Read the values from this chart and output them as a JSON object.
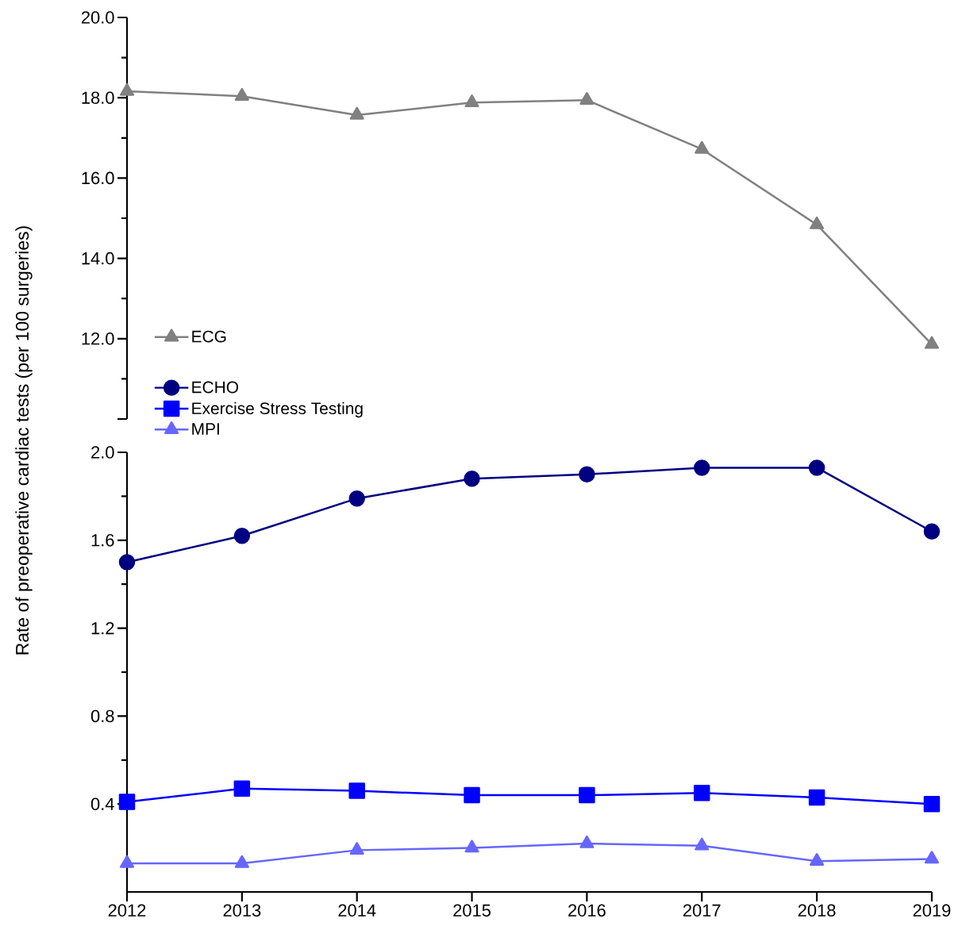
{
  "chart_data": [
    {
      "type": "line",
      "x": [
        2012,
        2013,
        2014,
        2015,
        2016,
        2017,
        2018,
        2019
      ],
      "xlim": [
        2012,
        2019
      ],
      "xticks": [
        2012,
        2013,
        2014,
        2015,
        2016,
        2017,
        2018,
        2019
      ],
      "ylim": [
        10,
        20
      ],
      "yticks": [
        {
          "value": 10,
          "label": null
        },
        {
          "value": 12,
          "label": "12.0"
        },
        {
          "value": 14,
          "label": "14.0"
        },
        {
          "value": 16,
          "label": "16.0"
        },
        {
          "value": 18,
          "label": "18.0"
        },
        {
          "value": 20,
          "label": "20.0"
        }
      ],
      "tick_labels": "y",
      "legend": "bottom left",
      "series": [
        {
          "name": "ECG",
          "color": "#808080",
          "marker": "triangle",
          "values": [
            18.16,
            18.04,
            17.57,
            17.88,
            17.94,
            16.72,
            14.84,
            11.86
          ]
        }
      ]
    },
    {
      "type": "line",
      "x": [
        2012,
        2013,
        2014,
        2015,
        2016,
        2017,
        2018,
        2019
      ],
      "xlim": [
        2012,
        2019
      ],
      "xticks": [
        2012,
        2013,
        2014,
        2015,
        2016,
        2017,
        2018,
        2019
      ],
      "ylim": [
        0,
        2
      ],
      "yticks": [
        {
          "value": 0.4,
          "label": "0.4"
        },
        {
          "value": 0.8,
          "label": "0.8"
        },
        {
          "value": 1.2,
          "label": "1.2"
        },
        {
          "value": 1.6,
          "label": "1.6"
        },
        {
          "value": 2,
          "label": "2.0"
        }
      ],
      "ylabel": "Rate of preoperative cardiac tests (per 100 surgeries)",
      "legend": "top left",
      "series": [
        {
          "name": "ECHO",
          "color": "#000080",
          "marker": "circle",
          "values": [
            1.5,
            1.62,
            1.79,
            1.88,
            1.9,
            1.93,
            1.93,
            1.64
          ]
        },
        {
          "name": "Exercise Stress Testing",
          "color": "#0000ff",
          "marker": "square",
          "values": [
            0.41,
            0.47,
            0.46,
            0.44,
            0.44,
            0.45,
            0.43,
            0.4
          ]
        },
        {
          "name": "MPI",
          "color": "#6666ff",
          "marker": "triangle",
          "values": [
            0.13,
            0.13,
            0.19,
            0.2,
            0.22,
            0.21,
            0.14,
            0.15
          ]
        }
      ]
    }
  ]
}
